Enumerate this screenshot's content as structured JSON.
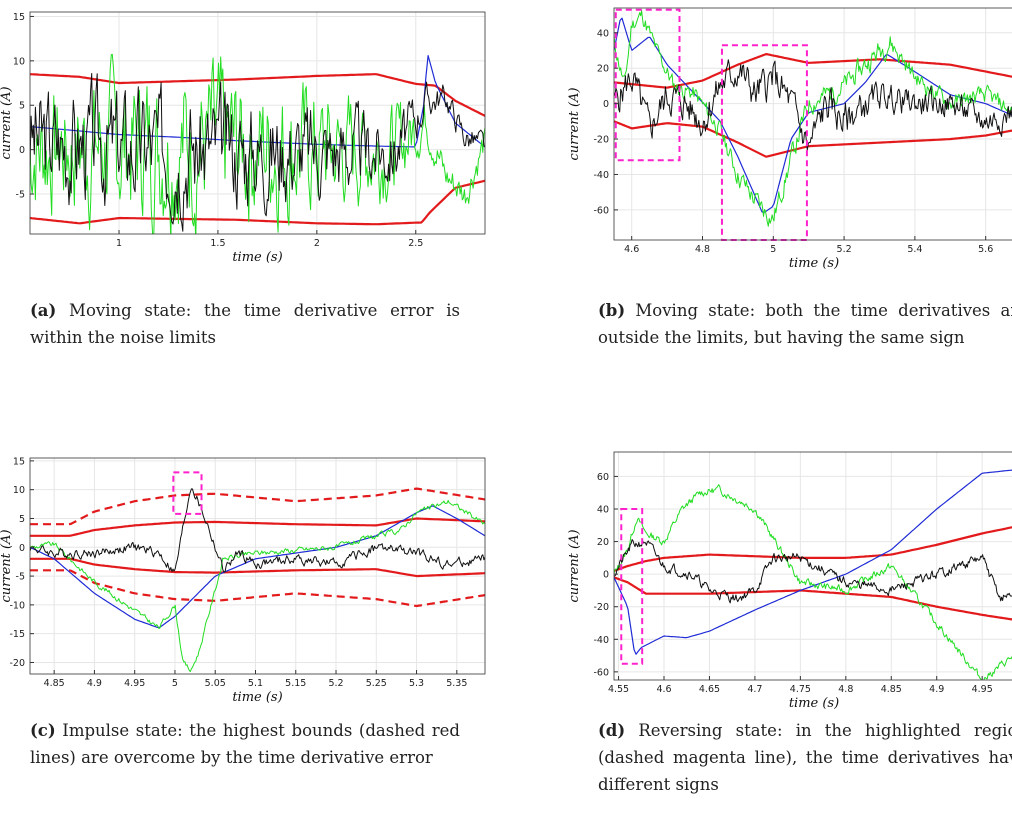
{
  "figure": {
    "panels": [
      {
        "id": "a",
        "caption_label": "(a)",
        "caption_text": "Moving state: the time derivative error is within the noise limits"
      },
      {
        "id": "b",
        "caption_label": "(b)",
        "caption_text": "Moving state: both the time derivatives are outside the limits, but having the same sign"
      },
      {
        "id": "c",
        "caption_label": "(c)",
        "caption_text": "Impulse state: the highest bounds (dashed red lines) are overcome by the time derivative error"
      },
      {
        "id": "d",
        "caption_label": "(d)",
        "caption_text": "Reversing state: in the highlighted region (dashed magenta line), the time derivatives have different signs"
      }
    ]
  },
  "colors": {
    "bound": "#e31a1c",
    "blue": "#1f2bd6",
    "green": "#22dd22",
    "black": "#111111",
    "highlight": "#ff22cc",
    "grid": "#e6e6e6"
  },
  "chart_data": [
    {
      "id": "a",
      "type": "line",
      "xlabel": "time (s)",
      "ylabel": "current (A)",
      "xlim": [
        0.55,
        2.85
      ],
      "ylim": [
        -9.5,
        15.5
      ],
      "xticks": [
        1,
        1.5,
        2,
        2.5
      ],
      "xtick_labels": [
        "1",
        "1.5",
        "2",
        "2.5"
      ],
      "yticks": [
        -5,
        0,
        5,
        10,
        15
      ],
      "ytick_labels": [
        "-5",
        "0",
        "5",
        "10",
        "15"
      ],
      "grid": true,
      "highlights": [],
      "series": [
        {
          "color": "red",
          "style": "solid",
          "x": [
            0.55,
            0.8,
            1.0,
            1.3,
            1.6,
            2.0,
            2.3,
            2.5,
            2.6,
            2.7,
            2.85
          ],
          "y": [
            8.5,
            8.2,
            7.5,
            7.7,
            7.9,
            8.3,
            8.5,
            7.4,
            7.2,
            5.5,
            3.8
          ]
        },
        {
          "color": "red",
          "style": "solid",
          "x": [
            0.55,
            0.8,
            1.0,
            1.3,
            1.6,
            2.0,
            2.3,
            2.53,
            2.57,
            2.7,
            2.85
          ],
          "y": [
            -7.7,
            -8.3,
            -7.7,
            -7.8,
            -7.9,
            -8.3,
            -8.4,
            -8.2,
            -7.1,
            -4.3,
            -3.5
          ]
        },
        {
          "color": "blue",
          "style": "solid",
          "x": [
            0.55,
            0.8,
            1.0,
            1.3,
            1.6,
            2.0,
            2.3,
            2.5,
            2.54,
            2.56,
            2.6,
            2.7,
            2.85
          ],
          "y": [
            2.6,
            2.1,
            1.7,
            1.4,
            1.0,
            0.6,
            0.4,
            0.3,
            5.0,
            10.8,
            7.5,
            3.0,
            0.3
          ]
        },
        {
          "color": "green",
          "style": "noisy",
          "seed": 7,
          "x": [
            0.55,
            1.0,
            1.5,
            2.0,
            2.4,
            2.55,
            2.65,
            2.75,
            2.85
          ],
          "y": [
            0,
            0.5,
            0.5,
            0,
            0,
            3.5,
            -3.0,
            -5.0,
            1.0
          ],
          "amp": [
            5.5,
            6.5,
            7.0,
            5.5,
            4.0,
            2.0,
            1.5,
            1.5,
            1.5
          ]
        },
        {
          "color": "black",
          "style": "noisy",
          "seed": 3,
          "x": [
            0.55,
            1.0,
            1.5,
            2.0,
            2.4,
            2.55,
            2.65,
            2.75,
            2.85
          ],
          "y": [
            1.0,
            0.5,
            0,
            0,
            0,
            5.5,
            6.0,
            1.5,
            0.5
          ],
          "amp": [
            5.0,
            5.0,
            5.0,
            4.0,
            3.0,
            1.5,
            1.2,
            1.2,
            1.2
          ]
        }
      ]
    },
    {
      "id": "b",
      "type": "line",
      "xlabel": "time (s)",
      "ylabel": "current (A)",
      "xlim": [
        4.55,
        5.68
      ],
      "ylim": [
        -77,
        54
      ],
      "xticks": [
        4.6,
        4.8,
        5,
        5.2,
        5.4,
        5.6
      ],
      "xtick_labels": [
        "4.6",
        "4.8",
        "5",
        "5.2",
        "5.4",
        "5.6"
      ],
      "yticks": [
        -60,
        -40,
        -20,
        0,
        20,
        40
      ],
      "ytick_labels": [
        "-60",
        "-40",
        "-20",
        "0",
        "20",
        "40"
      ],
      "grid": true,
      "highlights": [
        {
          "x0": 4.555,
          "x1": 4.735,
          "y0": -32,
          "y1": 53
        },
        {
          "x0": 4.855,
          "x1": 5.095,
          "y0": -77,
          "y1": 33
        }
      ],
      "series": [
        {
          "color": "red",
          "style": "solid",
          "x": [
            4.55,
            4.7,
            4.8,
            4.9,
            4.98,
            5.1,
            5.3,
            5.5,
            5.68
          ],
          "y": [
            12,
            9,
            13,
            22,
            28,
            23,
            25,
            22,
            15
          ]
        },
        {
          "color": "red",
          "style": "solid",
          "x": [
            4.55,
            4.6,
            4.7,
            4.8,
            4.9,
            4.98,
            5.1,
            5.3,
            5.5,
            5.6,
            5.68
          ],
          "y": [
            -10,
            -14,
            -11,
            -13,
            -22,
            -30,
            -24,
            -22,
            -20,
            -18,
            -15
          ]
        },
        {
          "color": "blue",
          "style": "solid",
          "x": [
            4.55,
            4.57,
            4.6,
            4.65,
            4.7,
            4.78,
            4.85,
            4.9,
            4.97,
            5.0,
            5.05,
            5.1,
            5.2,
            5.26,
            5.32,
            5.4,
            5.5,
            5.6,
            5.68
          ],
          "y": [
            30,
            50,
            30,
            38,
            22,
            5,
            -10,
            -30,
            -62,
            -58,
            -20,
            -5,
            0,
            12,
            28,
            18,
            5,
            0,
            -7
          ]
        },
        {
          "color": "green",
          "style": "noisy",
          "seed": 11,
          "x": [
            4.55,
            4.58,
            4.6,
            4.63,
            4.67,
            4.72,
            4.78,
            4.85,
            4.9,
            4.95,
            5.0,
            5.06,
            5.1,
            5.2,
            5.3,
            5.33,
            5.4,
            5.5,
            5.6,
            5.68
          ],
          "y": [
            35,
            10,
            45,
            50,
            30,
            10,
            5,
            -15,
            -40,
            -55,
            -65,
            -25,
            0,
            10,
            30,
            35,
            15,
            0,
            5,
            -5
          ],
          "amp": [
            4,
            4,
            4,
            4,
            4,
            4,
            4,
            4,
            5,
            5,
            5,
            5,
            5,
            5,
            5,
            5,
            4,
            4,
            4,
            4
          ]
        },
        {
          "color": "black",
          "style": "noisy",
          "seed": 5,
          "x": [
            4.55,
            4.6,
            4.65,
            4.7,
            4.75,
            4.8,
            4.85,
            4.9,
            4.95,
            5.0,
            5.05,
            5.1,
            5.15,
            5.2,
            5.3,
            5.4,
            5.5,
            5.6,
            5.68
          ],
          "y": [
            0,
            15,
            -15,
            5,
            0,
            -10,
            10,
            20,
            5,
            15,
            0,
            -25,
            0,
            -10,
            5,
            0,
            0,
            -10,
            -5
          ],
          "amp": [
            8,
            8,
            8,
            8,
            8,
            8,
            8,
            8,
            8,
            8,
            8,
            8,
            8,
            8,
            6,
            6,
            6,
            6,
            6
          ]
        }
      ]
    },
    {
      "id": "c",
      "type": "line",
      "xlabel": "time (s)",
      "ylabel": "current (A)",
      "xlim": [
        4.82,
        5.385
      ],
      "ylim": [
        -22,
        15.5
      ],
      "xticks": [
        4.85,
        4.9,
        4.95,
        5,
        5.05,
        5.1,
        5.15,
        5.2,
        5.25,
        5.3,
        5.35
      ],
      "xtick_labels": [
        "4.85",
        "4.9",
        "4.95",
        "5",
        "5.05",
        "5.1",
        "5.15",
        "5.2",
        "5.25",
        "5.3",
        "5.35"
      ],
      "yticks": [
        -20,
        -15,
        -10,
        -5,
        0,
        5,
        10,
        15
      ],
      "ytick_labels": [
        "-20",
        "-15",
        "-10",
        "-5",
        "0",
        "5",
        "10",
        "15"
      ],
      "grid": true,
      "highlights": [
        {
          "x0": 4.998,
          "x1": 5.033,
          "y0": 5.8,
          "y1": 13
        }
      ],
      "series": [
        {
          "color": "red",
          "style": "solid",
          "x": [
            4.82,
            4.87,
            4.9,
            4.95,
            5.0,
            5.05,
            5.15,
            5.25,
            5.3,
            5.385
          ],
          "y": [
            2,
            2,
            3,
            3.8,
            4.3,
            4.4,
            4.0,
            3.8,
            5.0,
            4.5
          ]
        },
        {
          "color": "red",
          "style": "solid",
          "x": [
            4.82,
            4.87,
            4.9,
            4.95,
            5.0,
            5.05,
            5.15,
            5.25,
            5.3,
            5.385
          ],
          "y": [
            -2,
            -2,
            -3,
            -3.8,
            -4.3,
            -4.4,
            -4.0,
            -3.8,
            -5.0,
            -4.5
          ]
        },
        {
          "color": "red",
          "style": "dashed",
          "x": [
            4.82,
            4.87,
            4.9,
            4.95,
            5.0,
            5.05,
            5.15,
            5.25,
            5.3,
            5.385
          ],
          "y": [
            4,
            4,
            6.2,
            8,
            9,
            9.3,
            8,
            9,
            10.2,
            8.3
          ]
        },
        {
          "color": "red",
          "style": "dashed",
          "x": [
            4.82,
            4.87,
            4.9,
            4.95,
            5.0,
            5.05,
            5.15,
            5.25,
            5.3,
            5.385
          ],
          "y": [
            -4,
            -4,
            -6.2,
            -8,
            -9,
            -9.3,
            -8,
            -9,
            -10.2,
            -8.3
          ]
        },
        {
          "color": "blue",
          "style": "solid",
          "x": [
            4.82,
            4.85,
            4.9,
            4.95,
            4.98,
            5.0,
            5.05,
            5.1,
            5.2,
            5.25,
            5.3,
            5.32,
            5.35,
            5.385
          ],
          "y": [
            0,
            -2,
            -8,
            -12.5,
            -14,
            -12,
            -5,
            -2,
            0,
            2,
            6,
            7.2,
            5,
            2
          ]
        },
        {
          "color": "green",
          "style": "noisy",
          "seed": 9,
          "x": [
            4.82,
            4.85,
            4.9,
            4.95,
            4.98,
            5.0,
            5.01,
            5.02,
            5.03,
            5.06,
            5.1,
            5.2,
            5.28,
            5.3,
            5.34,
            5.385
          ],
          "y": [
            0,
            0.5,
            -6,
            -11,
            -14,
            -10,
            -20,
            -21.5,
            -18,
            -2,
            -1,
            0,
            3,
            6,
            8,
            4
          ],
          "amp": [
            0.4,
            0.4,
            0.4,
            0.4,
            0.4,
            0.4,
            0.4,
            0.4,
            0.4,
            0.4,
            0.4,
            0.4,
            0.4,
            0.4,
            0.4,
            0.4
          ]
        },
        {
          "color": "black",
          "style": "noisy",
          "seed": 4,
          "x": [
            4.82,
            4.85,
            4.9,
            4.95,
            4.98,
            5.0,
            5.02,
            5.04,
            5.06,
            5.08,
            5.1,
            5.15,
            5.2,
            5.25,
            5.3,
            5.34,
            5.385
          ],
          "y": [
            0,
            -1,
            -1,
            0,
            -1,
            -4.5,
            11,
            4,
            -4,
            -1,
            -3,
            -2,
            -3,
            0,
            -1,
            -3,
            -2
          ],
          "amp": [
            0.7,
            0.7,
            0.7,
            0.7,
            0.7,
            0.7,
            0.7,
            0.7,
            0.7,
            0.7,
            0.7,
            0.7,
            0.7,
            0.7,
            0.7,
            0.7,
            0.7
          ]
        }
      ]
    },
    {
      "id": "d",
      "type": "line",
      "xlabel": "time (s)",
      "ylabel": "current (A)",
      "xlim": [
        4.545,
        4.985
      ],
      "ylim": [
        -65,
        75
      ],
      "xticks": [
        4.55,
        4.6,
        4.65,
        4.7,
        4.75,
        4.8,
        4.85,
        4.9,
        4.95
      ],
      "xtick_labels": [
        "4.55",
        "4.6",
        "4.65",
        "4.7",
        "4.75",
        "4.8",
        "4.85",
        "4.9",
        "4.95"
      ],
      "yticks": [
        -60,
        -40,
        -20,
        0,
        20,
        40,
        60
      ],
      "ytick_labels": [
        "-60",
        "-40",
        "-20",
        "0",
        "20",
        "40",
        "60"
      ],
      "grid": true,
      "highlights": [
        {
          "x0": 4.553,
          "x1": 4.576,
          "y0": -55,
          "y1": 40
        }
      ],
      "series": [
        {
          "color": "red",
          "style": "solid",
          "x": [
            4.545,
            4.56,
            4.58,
            4.6,
            4.65,
            4.7,
            4.75,
            4.8,
            4.85,
            4.9,
            4.95,
            4.985
          ],
          "y": [
            2,
            5,
            8,
            10,
            12,
            11,
            10,
            10,
            12,
            18,
            25,
            29
          ]
        },
        {
          "color": "red",
          "style": "solid",
          "x": [
            4.545,
            4.56,
            4.58,
            4.6,
            4.65,
            4.7,
            4.75,
            4.8,
            4.85,
            4.9,
            4.95,
            4.985
          ],
          "y": [
            -2,
            -5,
            -12,
            -12,
            -12,
            -11,
            -10,
            -12,
            -14,
            -20,
            -25,
            -28
          ]
        },
        {
          "color": "blue",
          "style": "solid",
          "x": [
            4.545,
            4.56,
            4.568,
            4.575,
            4.6,
            4.625,
            4.65,
            4.7,
            4.75,
            4.8,
            4.85,
            4.9,
            4.95,
            4.985
          ],
          "y": [
            -2,
            -20,
            -50,
            -45,
            -38,
            -39,
            -35,
            -22,
            -10,
            0,
            15,
            40,
            62,
            64
          ]
        },
        {
          "color": "green",
          "style": "noisy",
          "seed": 13,
          "x": [
            4.545,
            4.56,
            4.57,
            4.58,
            4.6,
            4.62,
            4.64,
            4.66,
            4.7,
            4.75,
            4.8,
            4.85,
            4.9,
            4.95,
            4.985
          ],
          "y": [
            0,
            15,
            35,
            25,
            20,
            40,
            50,
            52,
            40,
            -5,
            -10,
            5,
            -30,
            -65,
            -50
          ],
          "amp": [
            2,
            2,
            2,
            2,
            2,
            2,
            2,
            2,
            2,
            2,
            2,
            2,
            2,
            2,
            2
          ]
        },
        {
          "color": "black",
          "style": "noisy",
          "seed": 21,
          "x": [
            4.545,
            4.565,
            4.58,
            4.6,
            4.63,
            4.65,
            4.68,
            4.7,
            4.72,
            4.75,
            4.8,
            4.85,
            4.9,
            4.95,
            4.97,
            4.985
          ],
          "y": [
            0,
            18,
            20,
            5,
            0,
            -10,
            -15,
            -10,
            10,
            10,
            -5,
            -10,
            0,
            10,
            -15,
            -12
          ],
          "amp": [
            2.5,
            2.5,
            2.5,
            2.5,
            2.5,
            2.5,
            2.5,
            2.5,
            2.5,
            2.5,
            2.5,
            2.5,
            2.5,
            2.5,
            2.5,
            2.5
          ]
        }
      ]
    }
  ]
}
